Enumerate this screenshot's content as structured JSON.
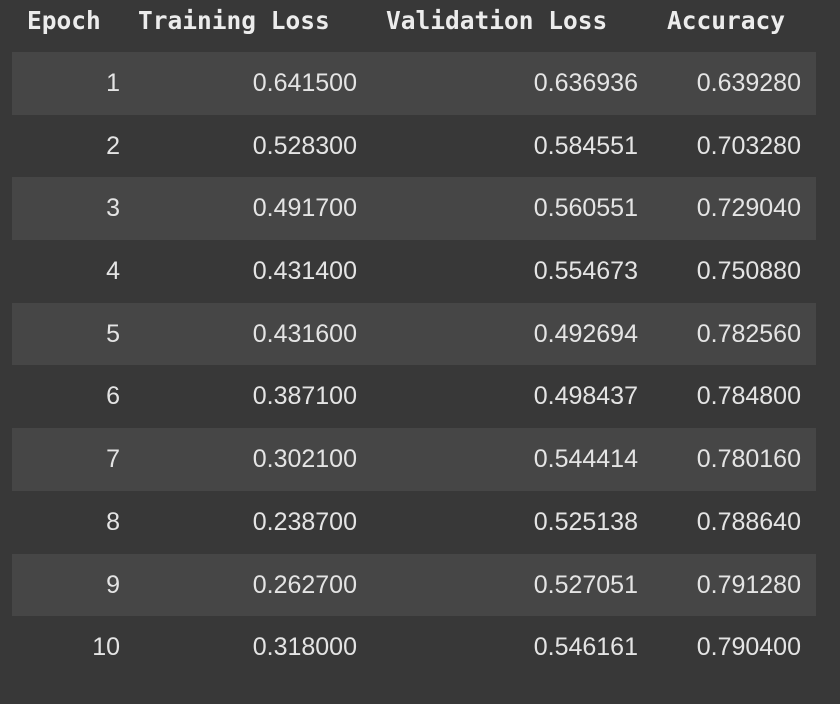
{
  "table": {
    "headers": {
      "epoch": "Epoch",
      "training_loss": "Training Loss",
      "validation_loss": "Validation Loss",
      "accuracy": "Accuracy"
    },
    "rows": [
      {
        "epoch": "1",
        "training_loss": "0.641500",
        "validation_loss": "0.636936",
        "accuracy": "0.639280"
      },
      {
        "epoch": "2",
        "training_loss": "0.528300",
        "validation_loss": "0.584551",
        "accuracy": "0.703280"
      },
      {
        "epoch": "3",
        "training_loss": "0.491700",
        "validation_loss": "0.560551",
        "accuracy": "0.729040"
      },
      {
        "epoch": "4",
        "training_loss": "0.431400",
        "validation_loss": "0.554673",
        "accuracy": "0.750880"
      },
      {
        "epoch": "5",
        "training_loss": "0.431600",
        "validation_loss": "0.492694",
        "accuracy": "0.782560"
      },
      {
        "epoch": "6",
        "training_loss": "0.387100",
        "validation_loss": "0.498437",
        "accuracy": "0.784800"
      },
      {
        "epoch": "7",
        "training_loss": "0.302100",
        "validation_loss": "0.544414",
        "accuracy": "0.780160"
      },
      {
        "epoch": "8",
        "training_loss": "0.238700",
        "validation_loss": "0.525138",
        "accuracy": "0.788640"
      },
      {
        "epoch": "9",
        "training_loss": "0.262700",
        "validation_loss": "0.527051",
        "accuracy": "0.791280"
      },
      {
        "epoch": "10",
        "training_loss": "0.318000",
        "validation_loss": "0.546161",
        "accuracy": "0.790400"
      }
    ]
  },
  "colors": {
    "background": "#383838",
    "row_stripe": "#464646",
    "text": "#e4e4e4"
  }
}
